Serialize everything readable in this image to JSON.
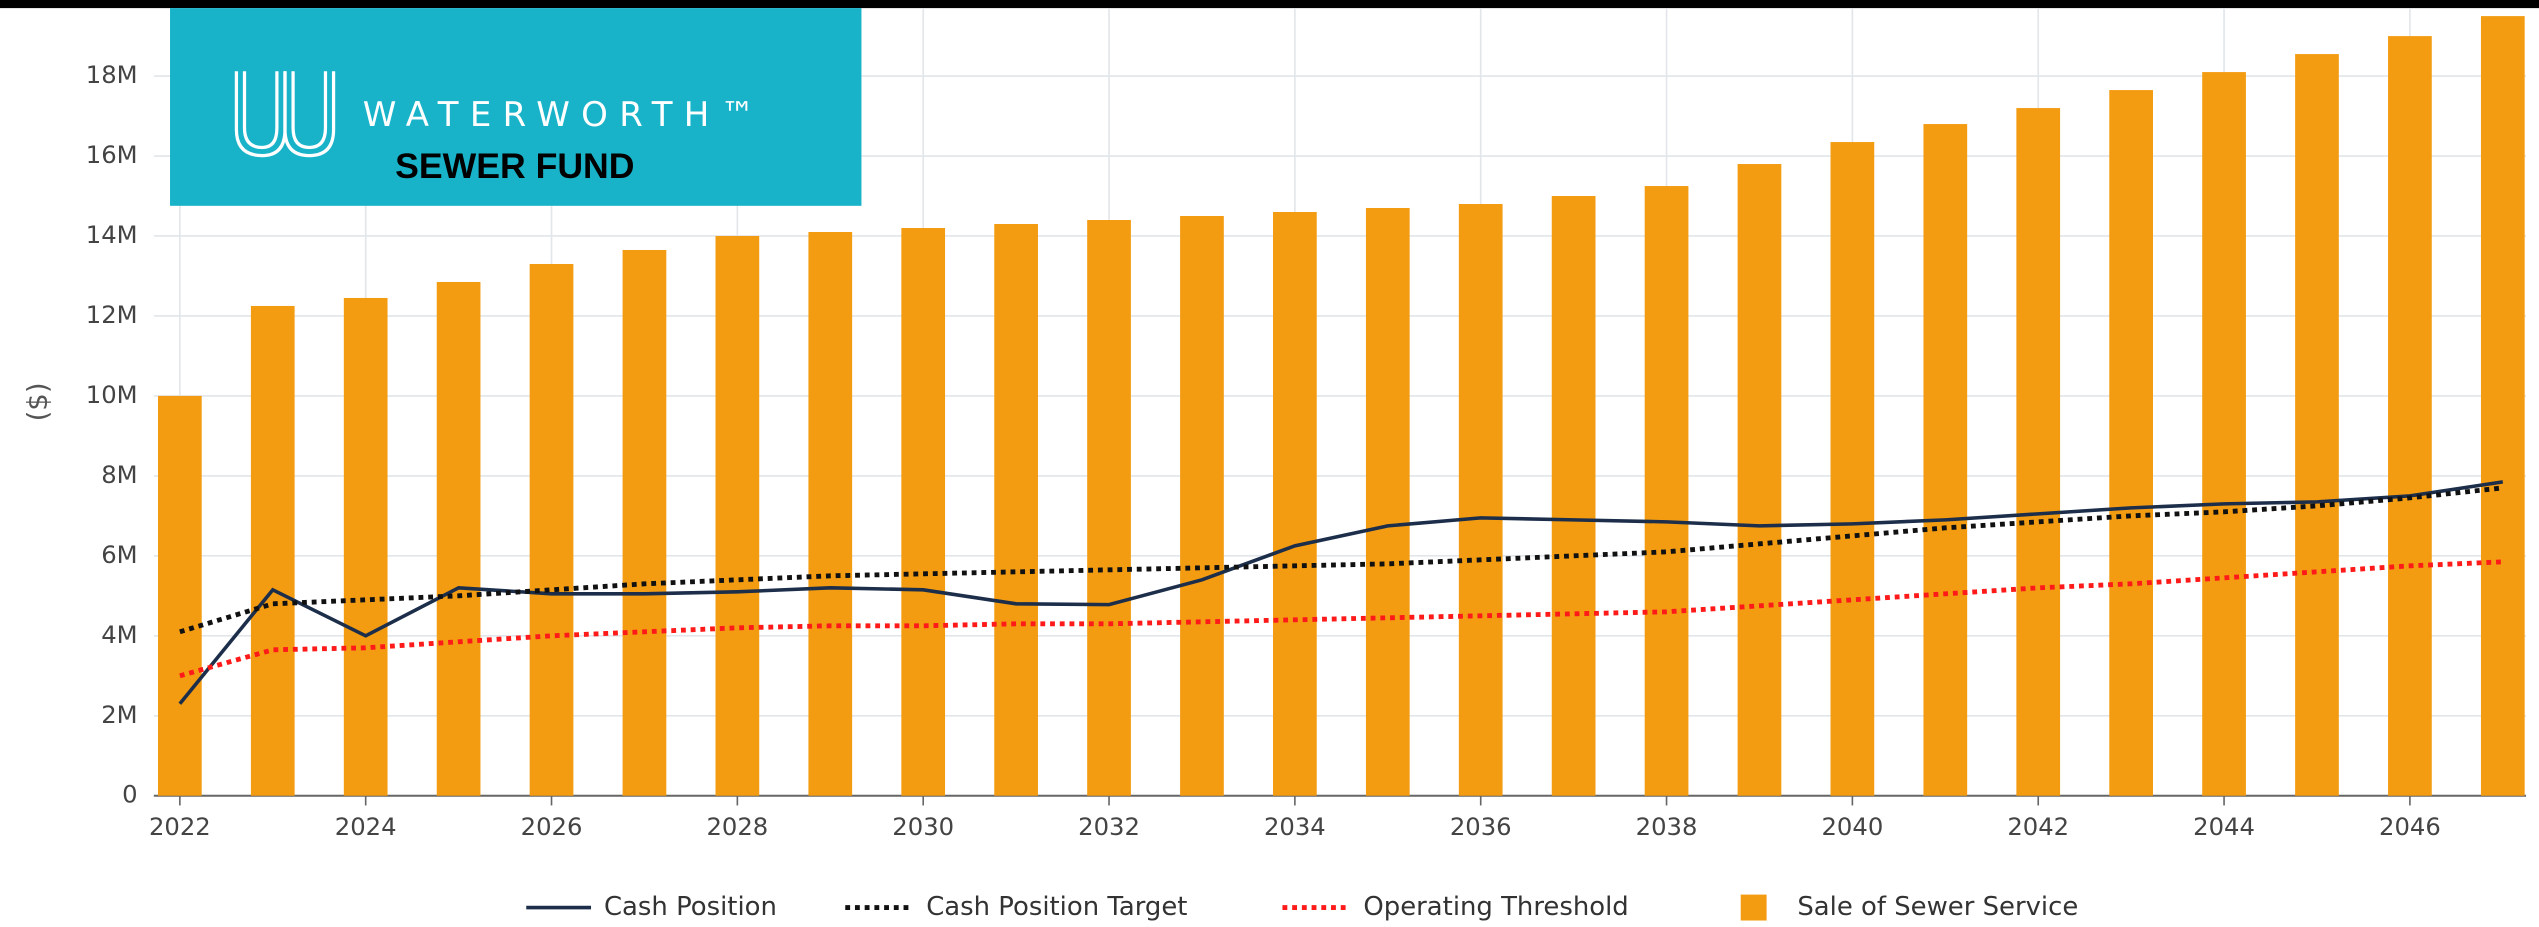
{
  "logo": {
    "brand": "WATERWORTH™",
    "subtitle": "SEWER FUND"
  },
  "chart_data": {
    "type": "bar",
    "y_label": "($)",
    "x": [
      2022,
      2023,
      2024,
      2025,
      2026,
      2027,
      2028,
      2029,
      2030,
      2031,
      2032,
      2033,
      2034,
      2035,
      2036,
      2037,
      2038,
      2039,
      2040,
      2041,
      2042,
      2043,
      2044,
      2045,
      2046,
      2047
    ],
    "xlim": [
      2021.72,
      2047.25
    ],
    "xticks": [
      2022,
      2024,
      2026,
      2028,
      2030,
      2032,
      2034,
      2036,
      2038,
      2040,
      2042,
      2044,
      2046
    ],
    "ylim": [
      0,
      19700000
    ],
    "yticks": [
      0,
      {
        "value": 2000000,
        "label": "2M"
      },
      {
        "value": 4000000,
        "label": "4M"
      },
      {
        "value": 6000000,
        "label": "6M"
      },
      {
        "value": 8000000,
        "label": "8M"
      },
      {
        "value": 10000000,
        "label": "10M"
      },
      {
        "value": 12000000,
        "label": "12M"
      },
      {
        "value": 14000000,
        "label": "14M"
      },
      {
        "value": 16000000,
        "label": "16M"
      },
      {
        "value": 18000000,
        "label": "18M"
      }
    ],
    "grid": true,
    "series": [
      {
        "name": "Cash Position",
        "type": "line",
        "dash": "solid",
        "color": "#1c2e4a",
        "values": [
          2300000,
          5150000,
          4000000,
          5200000,
          5050000,
          5050000,
          5100000,
          5200000,
          5150000,
          4800000,
          4780000,
          5400000,
          6250000,
          6750000,
          6950000,
          6900000,
          6850000,
          6750000,
          6800000,
          6900000,
          7050000,
          7200000,
          7300000,
          7350000,
          7500000,
          7850000
        ]
      },
      {
        "name": "Cash Position Target",
        "type": "line",
        "dash": "dotted",
        "color": "#111111",
        "values": [
          4100000,
          4800000,
          4900000,
          5000000,
          5150000,
          5300000,
          5400000,
          5500000,
          5550000,
          5600000,
          5650000,
          5700000,
          5750000,
          5800000,
          5900000,
          6000000,
          6100000,
          6300000,
          6500000,
          6700000,
          6850000,
          7000000,
          7100000,
          7250000,
          7450000,
          7700000
        ]
      },
      {
        "name": "Operating Threshold",
        "type": "line",
        "dash": "dotted",
        "color": "#ff1a1a",
        "values": [
          3000000,
          3650000,
          3700000,
          3850000,
          4000000,
          4100000,
          4200000,
          4250000,
          4250000,
          4300000,
          4300000,
          4350000,
          4400000,
          4450000,
          4500000,
          4550000,
          4600000,
          4750000,
          4900000,
          5050000,
          5200000,
          5300000,
          5450000,
          5600000,
          5750000,
          5850000
        ]
      },
      {
        "name": "Sale of Sewer Service",
        "type": "bar",
        "color": "#f39c12",
        "values": [
          10000000,
          12250000,
          12450000,
          12850000,
          13300000,
          13650000,
          14000000,
          14100000,
          14200000,
          14300000,
          14400000,
          14500000,
          14600000,
          14700000,
          14800000,
          15000000,
          15250000,
          15800000,
          16350000,
          16800000,
          17200000,
          17650000,
          18100000,
          18550000,
          19000000,
          19500000
        ]
      }
    ]
  }
}
